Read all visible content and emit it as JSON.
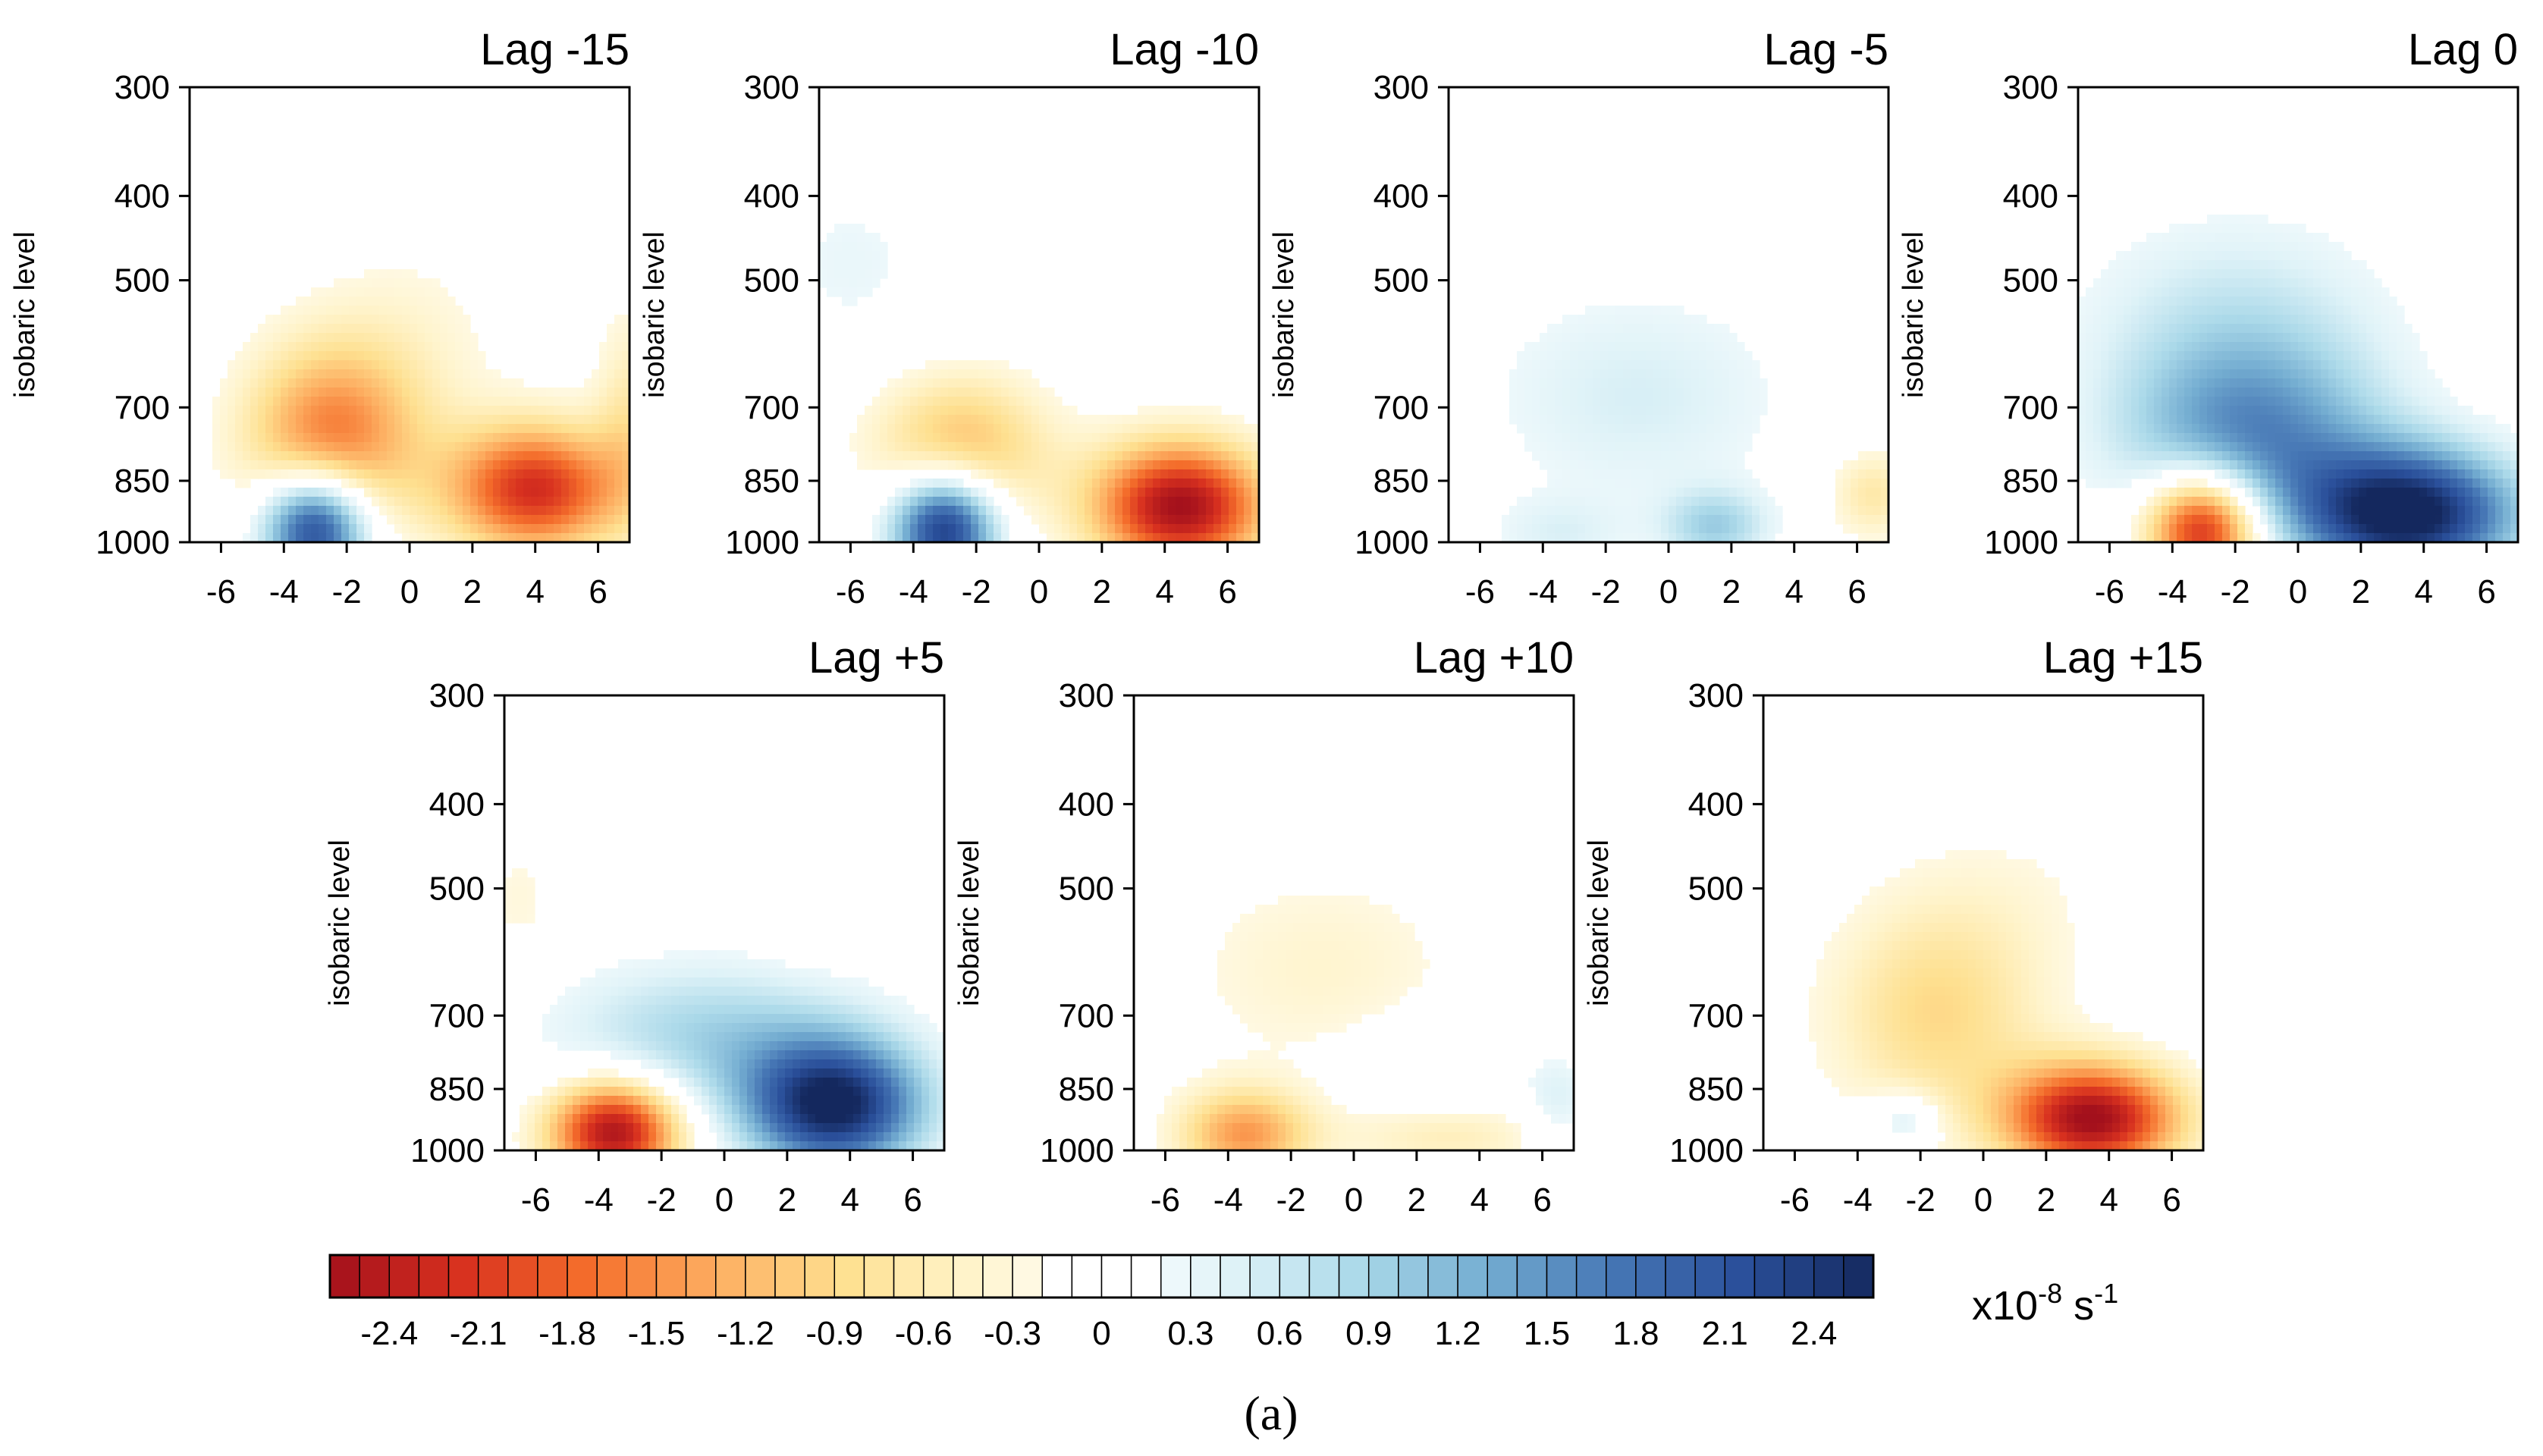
{
  "chart_data": {
    "type": "heatmap",
    "panels": [
      {
        "title": "Lag -15",
        "blobs": [
          {
            "x": -2.5,
            "y": 760,
            "sx": 2.0,
            "sy": 0.5,
            "v": -1.6
          },
          {
            "x": 4.0,
            "y": 870,
            "sx": 2.0,
            "sy": 0.35,
            "v": -2.2
          },
          {
            "x": -3.0,
            "y": 960,
            "sx": 1.2,
            "sy": 0.3,
            "v": 2.6
          },
          {
            "x": 0.0,
            "y": 580,
            "sx": 2.5,
            "sy": 0.6,
            "v": -0.3
          },
          {
            "x": 7.0,
            "y": 720,
            "sx": 0.8,
            "sy": 0.6,
            "v": -0.6
          }
        ]
      },
      {
        "title": "Lag -10",
        "blobs": [
          {
            "x": -2.5,
            "y": 780,
            "sx": 2.0,
            "sy": 0.4,
            "v": -1.2
          },
          {
            "x": 4.5,
            "y": 910,
            "sx": 2.0,
            "sy": 0.35,
            "v": -2.6
          },
          {
            "x": -3.0,
            "y": 960,
            "sx": 1.2,
            "sy": 0.3,
            "v": 2.6
          },
          {
            "x": -6.0,
            "y": 480,
            "sx": 2.0,
            "sy": 0.5,
            "v": 0.3
          }
        ]
      },
      {
        "title": "Lag -5",
        "blobs": [
          {
            "x": -1.0,
            "y": 680,
            "sx": 3.5,
            "sy": 0.6,
            "v": 0.5
          },
          {
            "x": 1.5,
            "y": 960,
            "sx": 1.2,
            "sy": 0.2,
            "v": 0.9
          },
          {
            "x": -3.5,
            "y": 980,
            "sx": 1.5,
            "sy": 0.2,
            "v": 0.4
          },
          {
            "x": 6.5,
            "y": 880,
            "sx": 1.0,
            "sy": 0.25,
            "v": -0.7
          }
        ]
      },
      {
        "title": "Lag 0",
        "blobs": [
          {
            "x": -1.5,
            "y": 760,
            "sx": 3.0,
            "sy": 0.5,
            "v": 1.4
          },
          {
            "x": -2.0,
            "y": 560,
            "sx": 3.5,
            "sy": 0.6,
            "v": 0.6
          },
          {
            "x": 3.5,
            "y": 930,
            "sx": 2.5,
            "sy": 0.35,
            "v": 2.7
          },
          {
            "x": -3.0,
            "y": 960,
            "sx": 1.3,
            "sy": 0.3,
            "v": -2.6
          }
        ]
      },
      {
        "title": "Lag +5",
        "blobs": [
          {
            "x": 3.5,
            "y": 890,
            "sx": 2.0,
            "sy": 0.35,
            "v": 2.6
          },
          {
            "x": -0.5,
            "y": 740,
            "sx": 3.5,
            "sy": 0.4,
            "v": 0.9
          },
          {
            "x": -3.5,
            "y": 950,
            "sx": 1.5,
            "sy": 0.28,
            "v": -2.6
          },
          {
            "x": -6.5,
            "y": 520,
            "sx": 1.0,
            "sy": 0.4,
            "v": -0.3
          },
          {
            "x": 2.5,
            "y": 480,
            "sx": 1.0,
            "sy": 0.4,
            "v": -0.2
          }
        ]
      },
      {
        "title": "Lag +10",
        "blobs": [
          {
            "x": -1.0,
            "y": 620,
            "sx": 3.5,
            "sy": 0.6,
            "v": -0.4
          },
          {
            "x": -3.5,
            "y": 960,
            "sx": 1.5,
            "sy": 0.25,
            "v": -1.4
          },
          {
            "x": 3.0,
            "y": 960,
            "sx": 2.5,
            "sy": 0.2,
            "v": -0.6
          },
          {
            "x": 2.5,
            "y": 820,
            "sx": 2.0,
            "sy": 0.3,
            "v": 0.3
          },
          {
            "x": 6.5,
            "y": 880,
            "sx": 0.8,
            "sy": 0.25,
            "v": 0.5
          }
        ]
      },
      {
        "title": "Lag +15",
        "blobs": [
          {
            "x": -1.5,
            "y": 700,
            "sx": 2.5,
            "sy": 0.6,
            "v": -0.9
          },
          {
            "x": 3.5,
            "y": 920,
            "sx": 2.0,
            "sy": 0.3,
            "v": -2.6
          },
          {
            "x": -2.5,
            "y": 920,
            "sx": 0.8,
            "sy": 0.15,
            "v": 0.7
          },
          {
            "x": 1.0,
            "y": 500,
            "sx": 3.0,
            "sy": 0.5,
            "v": -0.2
          }
        ]
      }
    ],
    "xlim": [
      -7,
      7
    ],
    "xticks": [
      -6,
      -4,
      -2,
      0,
      2,
      4,
      6
    ],
    "xtick_labels": [
      "-6",
      "-4",
      "-2",
      "0",
      "2",
      "4",
      "6"
    ],
    "yticks": [
      300,
      400,
      500,
      700,
      850,
      1000
    ],
    "ytick_labels": [
      "300",
      "400",
      "500",
      "700",
      "850",
      "1000"
    ],
    "ylim": [
      300,
      1000
    ],
    "ylabel": "isobaric level",
    "colorbar": {
      "levels": [
        -2.6,
        -2.5,
        -2.4,
        -2.3,
        -2.2,
        -2.1,
        -2.0,
        -1.9,
        -1.8,
        -1.7,
        -1.6,
        -1.5,
        -1.4,
        -1.3,
        -1.2,
        -1.1,
        -1.0,
        -0.9,
        -0.8,
        -0.7,
        -0.6,
        -0.5,
        -0.4,
        -0.3,
        -0.2,
        -0.1,
        0,
        0.1,
        0.2,
        0.3,
        0.4,
        0.5,
        0.6,
        0.7,
        0.8,
        0.9,
        1.0,
        1.1,
        1.2,
        1.3,
        1.4,
        1.5,
        1.6,
        1.7,
        1.8,
        1.9,
        2.0,
        2.1,
        2.2,
        2.3,
        2.4,
        2.5,
        2.6
      ],
      "tick_values": [
        -2.4,
        -2.1,
        -1.8,
        -1.5,
        -1.2,
        -0.9,
        -0.6,
        -0.3,
        0,
        0.3,
        0.6,
        0.9,
        1.2,
        1.5,
        1.8,
        2.1,
        2.4
      ],
      "tick_labels": [
        "-2.4",
        "-2.1",
        "-1.8",
        "-1.5",
        "-1.2",
        "-0.9",
        "-0.6",
        "-0.3",
        "0",
        "0.3",
        "0.6",
        "0.9",
        "1.2",
        "1.5",
        "1.8",
        "2.1",
        "2.4"
      ],
      "unit_base": "x10",
      "unit_exp": "-8",
      "unit_s": " s",
      "unit_s_exp": "-1"
    },
    "caption": "(a)"
  },
  "colors": {
    "negative": [
      "#a3101c",
      "#d7301f",
      "#f46d2b",
      "#fdae61",
      "#fee090",
      "#fff4cc"
    ],
    "positive": [
      "#e0f3f8",
      "#abd9e9",
      "#74add1",
      "#4575b4",
      "#2a4f9a",
      "#14285e"
    ],
    "axis": "#000000"
  }
}
